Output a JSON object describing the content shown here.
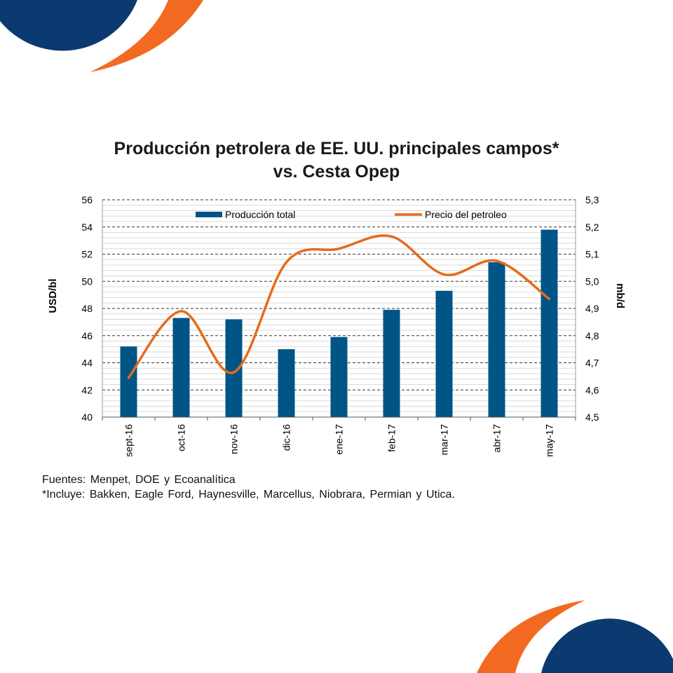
{
  "colors": {
    "bar": "#005486",
    "line": "#E46C1B",
    "deco_blue": "#0B3A70",
    "deco_orange": "#F26A21"
  },
  "chart_data": {
    "type": "bar",
    "title_line1": "Producción petrolera de EE. UU. principales campos*",
    "title_line2": "vs. Cesta Opep",
    "categories": [
      "sept-16",
      "oct-16",
      "nov-16",
      "dic-16",
      "ene-17",
      "feb-17",
      "mar-17",
      "abr-17",
      "may-17"
    ],
    "series": [
      {
        "name": "Producción total",
        "type": "bar",
        "axis": "left",
        "values": [
          45.2,
          47.3,
          47.2,
          45.0,
          45.9,
          47.9,
          49.3,
          51.4,
          53.8
        ]
      },
      {
        "name": "Precio del petroleo",
        "type": "line",
        "axis": "right",
        "values": [
          4.645,
          4.89,
          4.665,
          5.07,
          5.12,
          5.165,
          5.025,
          5.075,
          4.935
        ]
      }
    ],
    "ylabel_left": "USD/bl",
    "ylabel_right": "mb/d",
    "ylim_left": [
      40,
      56
    ],
    "yticks_left": [
      "40",
      "42",
      "44",
      "46",
      "48",
      "50",
      "52",
      "54",
      "56"
    ],
    "ylim_right": [
      4.5,
      5.3
    ],
    "yticks_right": [
      "4,5",
      "4,6",
      "4,7",
      "4,8",
      "4,9",
      "5,0",
      "5,1",
      "5,2",
      "5,3"
    ],
    "grid": true,
    "legend_position": "top"
  },
  "footnotes": {
    "sources": "Fuentes: Menpet, DOE y Ecoanalítica",
    "includes": "*Incluye: Bakken, Eagle Ford, Haynesville, Marcellus, Niobrara, Permian y Utica."
  }
}
